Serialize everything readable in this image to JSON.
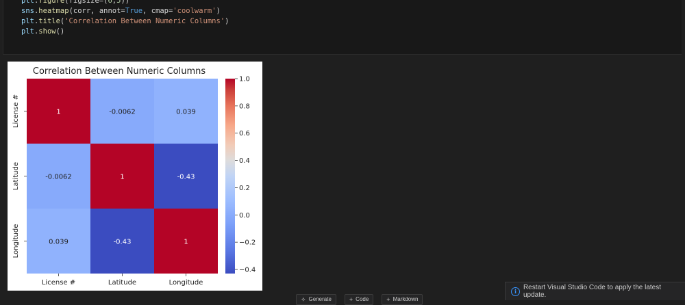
{
  "code": {
    "lines": [
      [
        {
          "t": "plt",
          "c": "var"
        },
        {
          "t": ".",
          "c": "p"
        },
        {
          "t": "figure",
          "c": "fn"
        },
        {
          "t": "(figsize=(",
          "c": "p"
        },
        {
          "t": "6",
          "c": "num"
        },
        {
          "t": ",",
          "c": "p"
        },
        {
          "t": "5",
          "c": "num"
        },
        {
          "t": "))",
          "c": "p"
        }
      ],
      [
        {
          "t": "sns",
          "c": "var"
        },
        {
          "t": ".",
          "c": "p"
        },
        {
          "t": "heatmap",
          "c": "fn"
        },
        {
          "t": "(corr, annot=",
          "c": "p"
        },
        {
          "t": "True",
          "c": "kw"
        },
        {
          "t": ", cmap=",
          "c": "p"
        },
        {
          "t": "'coolwarm'",
          "c": "str"
        },
        {
          "t": ")",
          "c": "p"
        }
      ],
      [
        {
          "t": "plt",
          "c": "var"
        },
        {
          "t": ".",
          "c": "p"
        },
        {
          "t": "title",
          "c": "fn"
        },
        {
          "t": "(",
          "c": "p"
        },
        {
          "t": "'Correlation Between Numeric Columns'",
          "c": "str"
        },
        {
          "t": ")",
          "c": "p"
        }
      ],
      [
        {
          "t": "plt",
          "c": "var"
        },
        {
          "t": ".",
          "c": "p"
        },
        {
          "t": "show",
          "c": "fn"
        },
        {
          "t": "()",
          "c": "p"
        }
      ]
    ]
  },
  "chart_data": {
    "type": "heatmap",
    "title": "Correlation Between Numeric Columns",
    "rows": [
      "License #",
      "Latitude",
      "Longitude"
    ],
    "cols": [
      "License #",
      "Latitude",
      "Longitude"
    ],
    "values": [
      [
        1,
        -0.0062,
        0.039
      ],
      [
        -0.0062,
        1,
        -0.43
      ],
      [
        0.039,
        -0.43,
        1
      ]
    ],
    "annotations": [
      [
        "1",
        "-0.0062",
        "0.039"
      ],
      [
        "-0.0062",
        "1",
        "-0.43"
      ],
      [
        "0.039",
        "-0.43",
        "1"
      ]
    ],
    "colormap": "coolwarm",
    "colorbar_range": [
      -0.43,
      1.0
    ],
    "colorbar_ticks": [
      "1.0",
      "0.8",
      "0.6",
      "0.4",
      "0.2",
      "0.0",
      "−0.2",
      "−0.4"
    ],
    "colorbar_tick_values": [
      1.0,
      0.8,
      0.6,
      0.4,
      0.2,
      0.0,
      -0.2,
      -0.4
    ]
  },
  "toolbar": {
    "generate_label": "Generate",
    "code_label": "Code",
    "markdown_label": "Markdown"
  },
  "notification": {
    "text": "Restart Visual Studio Code to apply the latest update."
  }
}
